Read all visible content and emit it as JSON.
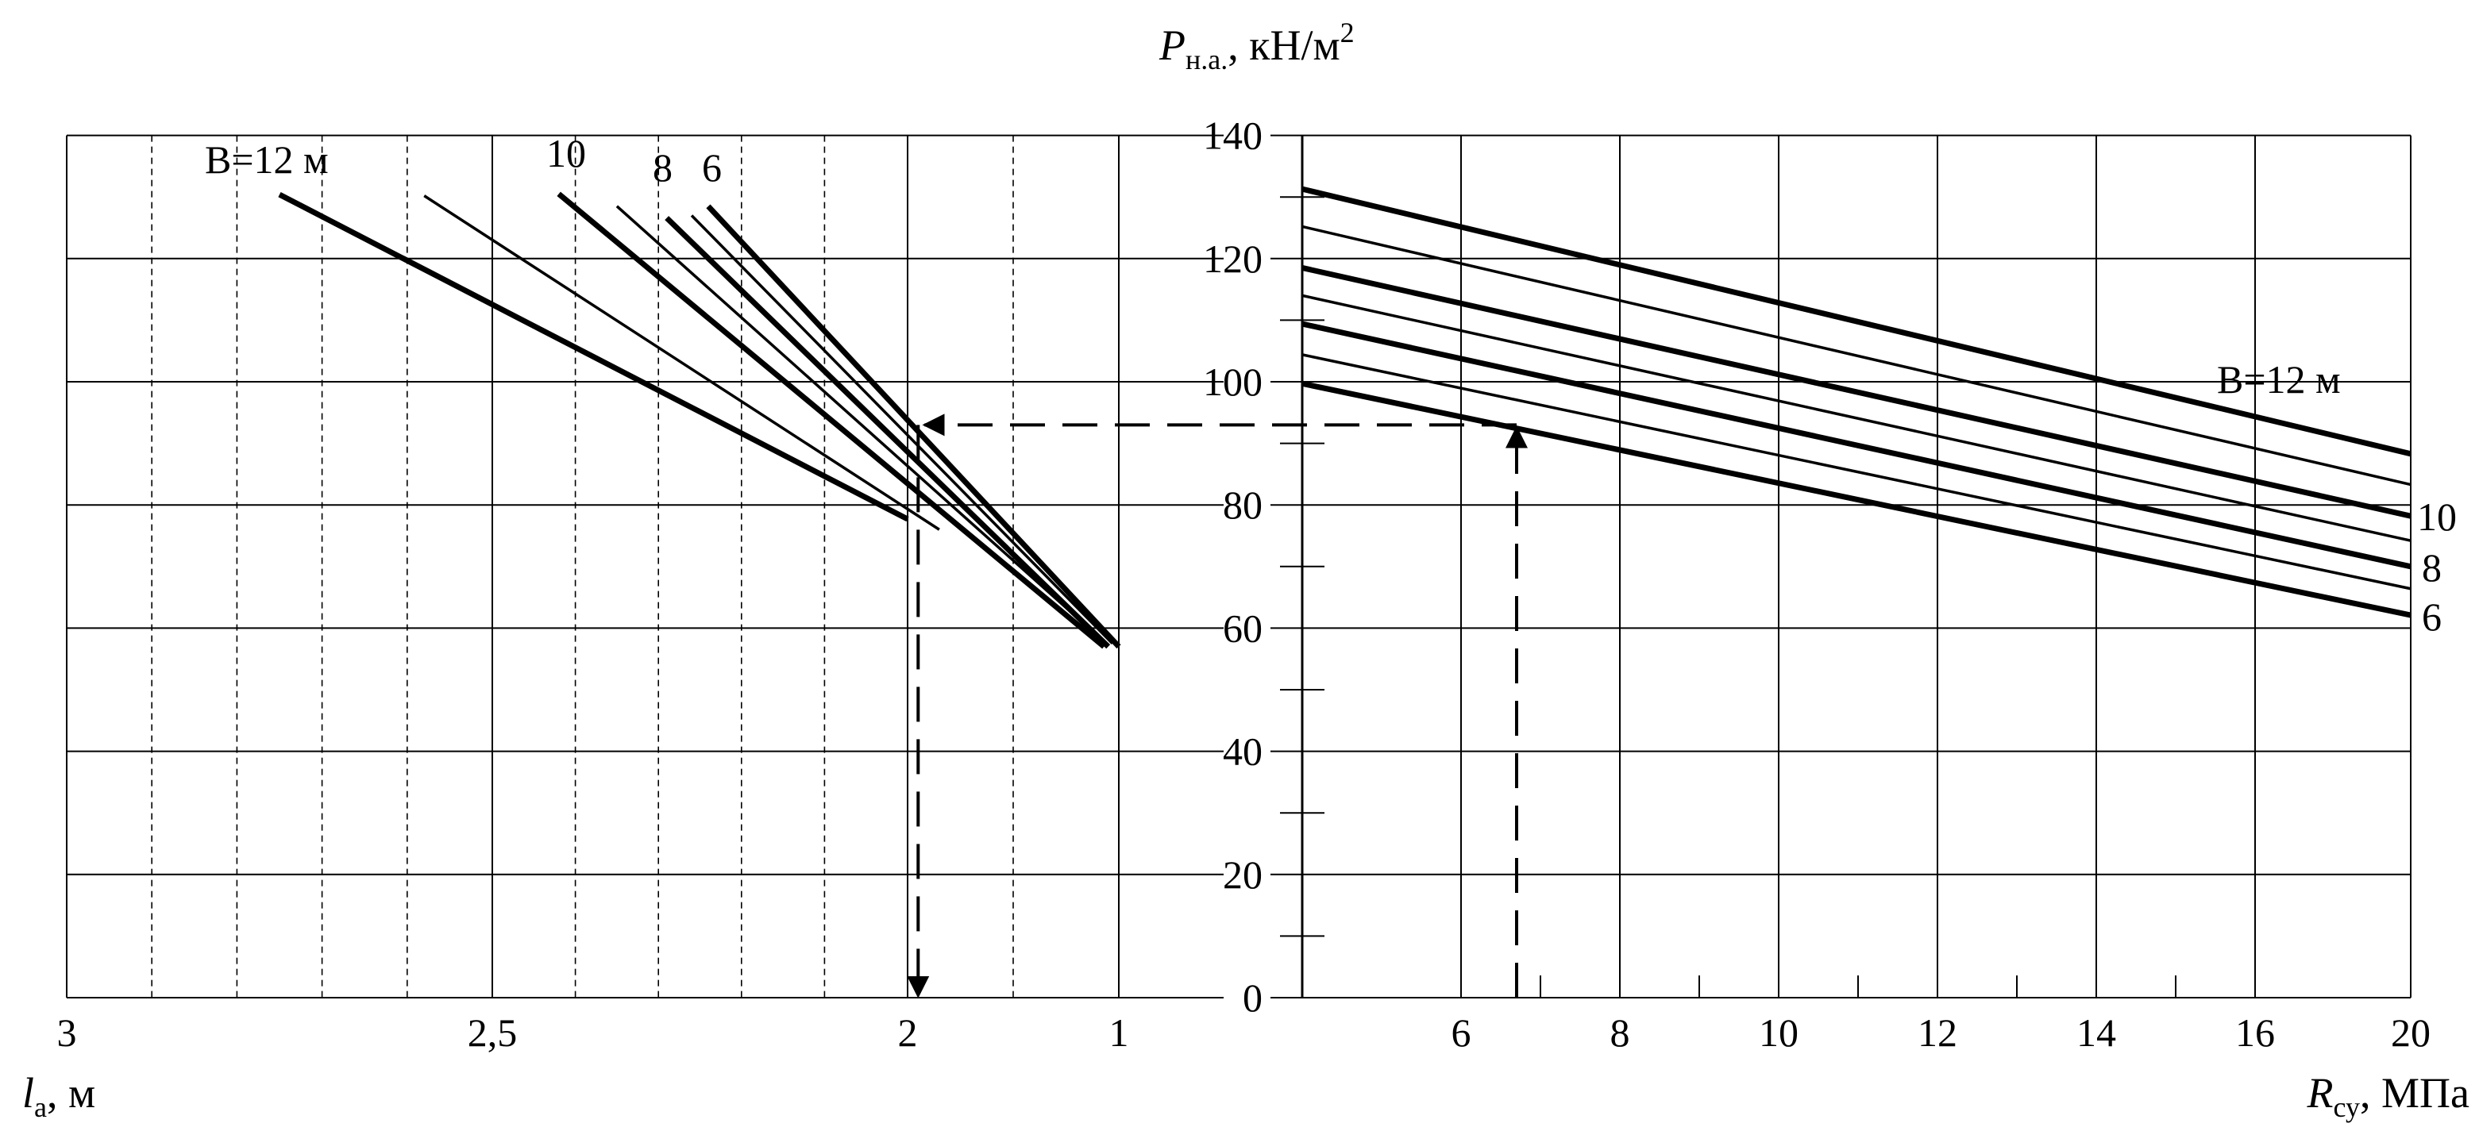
{
  "chart_data": [
    {
      "type": "line",
      "panel": "left",
      "xlabel": {
        "symbol": "l",
        "subscript": "а",
        "unit": ", м"
      },
      "x_ticks": [
        {
          "value": 3,
          "label": "3"
        },
        {
          "value": 2.5,
          "label": "2,5"
        },
        {
          "value": 2,
          "label": "2"
        },
        {
          "value": 1,
          "label": "1"
        }
      ],
      "x_dashed_grid": [
        2.9,
        2.8,
        2.7,
        2.6,
        2.4,
        2.3,
        2.2,
        2.1,
        1.5
      ],
      "xlim": [
        3,
        1
      ],
      "ylim": [
        0,
        140
      ],
      "grid": true,
      "series": [
        {
          "b": 12,
          "thick": true,
          "label": "B=12 м",
          "x": [
            2.75,
            2.0
          ],
          "y": [
            130.4,
            77.7
          ]
        },
        {
          "b": 11,
          "thick": false,
          "label": "",
          "x": [
            2.58,
            1.85
          ],
          "y": [
            130.2,
            76.0
          ]
        },
        {
          "b": 10,
          "thick": true,
          "label": "10",
          "x": [
            2.42,
            1.07
          ],
          "y": [
            130.5,
            57.0
          ]
        },
        {
          "b": 9,
          "thick": false,
          "label": "",
          "x": [
            2.35,
            1.06
          ],
          "y": [
            128.5,
            57.5
          ]
        },
        {
          "b": 8,
          "thick": true,
          "label": "8",
          "x": [
            2.29,
            1.05
          ],
          "y": [
            126.6,
            57.0
          ]
        },
        {
          "b": 7,
          "thick": false,
          "label": "",
          "x": [
            2.26,
            1.03
          ],
          "y": [
            127.0,
            57.5
          ]
        },
        {
          "b": 6,
          "thick": true,
          "label": "6",
          "x": [
            2.24,
            1.0
          ],
          "y": [
            128.5,
            57.0
          ]
        }
      ]
    },
    {
      "type": "line",
      "panel": "right",
      "ylabel": {
        "symbol": "P",
        "subscript": "н.а.",
        "unit": ", кН/м",
        "superscript": "2"
      },
      "xlabel": {
        "symbol": "R",
        "subscript": "су",
        "unit": ", МПа"
      },
      "y_ticks": [
        "0",
        "20",
        "40",
        "60",
        "80",
        "100",
        "120",
        "140"
      ],
      "y_tick_values": [
        0,
        20,
        40,
        60,
        80,
        100,
        120,
        140
      ],
      "x_ticks": [
        {
          "value": 6,
          "label": "6"
        },
        {
          "value": 8,
          "label": "8"
        },
        {
          "value": 10,
          "label": "10"
        },
        {
          "value": 12,
          "label": "12"
        },
        {
          "value": 14,
          "label": "14"
        },
        {
          "value": 16,
          "label": "16"
        },
        {
          "value": 20,
          "label": "20"
        }
      ],
      "xlim": [
        4,
        20
      ],
      "ylim": [
        0,
        140
      ],
      "grid": true,
      "series": [
        {
          "b": 12,
          "thick": true,
          "label": "B=12 м",
          "x": [
            4,
            20
          ],
          "y": [
            131.3,
            88.3
          ]
        },
        {
          "b": 11,
          "thick": false,
          "label": "",
          "x": [
            4,
            20
          ],
          "y": [
            125.2,
            83.3
          ]
        },
        {
          "b": 10,
          "thick": true,
          "label": "10",
          "x": [
            4,
            20
          ],
          "y": [
            118.5,
            78.2
          ]
        },
        {
          "b": 9,
          "thick": false,
          "label": "",
          "x": [
            4,
            20
          ],
          "y": [
            114.0,
            74.2
          ]
        },
        {
          "b": 8,
          "thick": true,
          "label": "8",
          "x": [
            4,
            20
          ],
          "y": [
            109.4,
            70.0
          ]
        },
        {
          "b": 7,
          "thick": false,
          "label": "",
          "x": [
            4,
            20
          ],
          "y": [
            104.4,
            66.4
          ]
        },
        {
          "b": 6,
          "thick": true,
          "label": "6",
          "x": [
            4,
            20
          ],
          "y": [
            99.7,
            62.1
          ]
        }
      ]
    }
  ],
  "example_path": {
    "r_cy": 6.7,
    "p_na": 93,
    "l_a": 1.95
  }
}
